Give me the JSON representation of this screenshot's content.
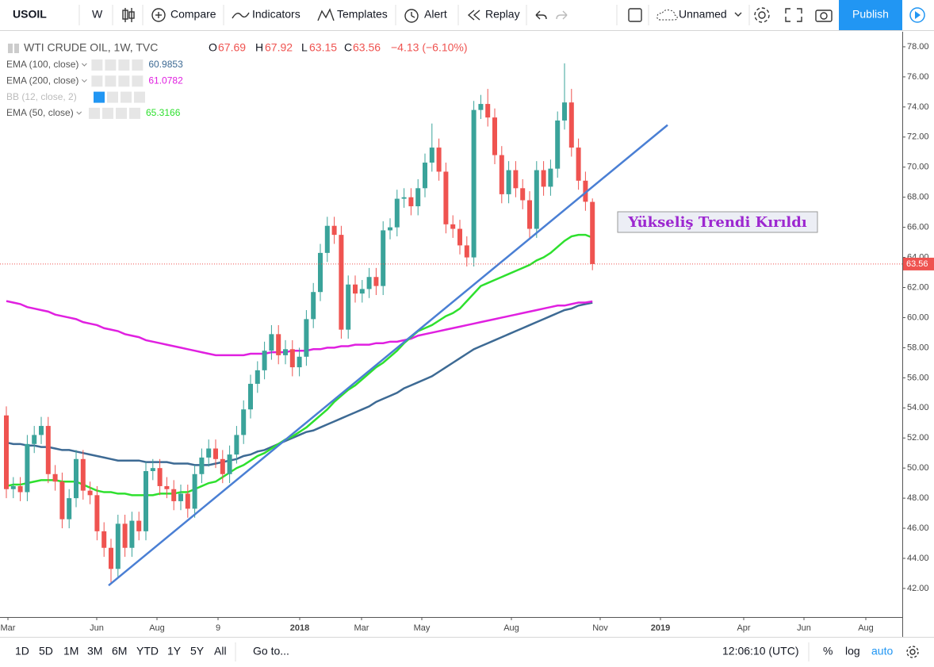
{
  "toolbar": {
    "symbol": "USOIL",
    "interval": "W",
    "compare": "Compare",
    "indicators": "Indicators",
    "templates": "Templates",
    "alert": "Alert",
    "replay": "Replay",
    "layout_name": "Unnamed",
    "publish": "Publish"
  },
  "bottom_bar": {
    "ranges": [
      "1D",
      "5D",
      "1M",
      "3M",
      "6M",
      "YTD",
      "1Y",
      "5Y",
      "All"
    ],
    "goto": "Go to...",
    "clock": "12:06:10 (UTC)",
    "percent": "%",
    "log": "log",
    "auto": "auto"
  },
  "chart_data": {
    "type": "candlestick",
    "title": "WTI CRUDE OIL, 1W, TVC",
    "legend": {
      "o": "O",
      "h": "H",
      "l": "L",
      "c": "C",
      "change": "−4.13 (−6.10%)"
    },
    "up_color": "#3aa39a",
    "down_color": "#ef5350",
    "grid": false,
    "open": [
      53.5,
      48.6,
      48.8,
      48.4,
      51.6,
      52.2,
      52.8,
      49.6,
      49.1,
      46.6,
      48.0,
      50.6,
      48.5,
      48.2,
      45.8,
      44.7,
      43.3,
      46.3,
      44.7,
      46.5,
      45.8,
      49.8,
      50.0,
      48.8,
      48.6,
      47.8,
      48.3,
      47.3,
      49.6,
      50.7,
      51.3,
      50.6,
      49.6,
      50.9,
      52.2,
      53.9,
      55.6,
      56.5,
      57.8,
      58.9,
      57.5,
      57.9,
      56.7,
      57.4,
      59.9,
      61.7,
      64.3,
      66.1,
      65.5,
      59.2,
      62.2,
      61.6,
      61.9,
      62.7,
      62.1,
      65.8,
      66.0,
      67.9,
      68.0,
      67.4,
      68.6,
      70.3,
      71.3,
      69.7,
      66.2,
      65.9,
      64.8,
      64.0,
      73.8,
      74.2,
      73.3,
      70.8,
      68.2,
      69.8,
      68.6,
      67.8,
      65.9,
      69.8,
      68.7,
      69.9,
      73.1,
      74.3,
      71.3,
      69.1,
      67.69
    ],
    "high": [
      54.1,
      49.4,
      49.4,
      52.2,
      52.8,
      53.4,
      53.4,
      50.2,
      49.7,
      48.6,
      51.2,
      51.2,
      49.1,
      48.8,
      46.4,
      45.3,
      46.9,
      46.9,
      47.1,
      47.1,
      50.4,
      50.6,
      50.6,
      49.4,
      49.2,
      48.9,
      48.9,
      50.2,
      51.3,
      51.9,
      51.9,
      51.2,
      51.5,
      52.8,
      54.5,
      56.2,
      57.1,
      58.4,
      59.5,
      59.5,
      58.5,
      58.5,
      58.0,
      60.5,
      62.3,
      64.9,
      66.7,
      66.7,
      66.1,
      62.8,
      62.8,
      62.5,
      63.3,
      63.3,
      66.4,
      66.6,
      68.5,
      68.6,
      68.6,
      69.2,
      70.9,
      72.9,
      71.9,
      70.3,
      66.8,
      66.5,
      65.4,
      74.4,
      74.8,
      75.2,
      73.9,
      71.4,
      70.4,
      70.4,
      69.2,
      68.4,
      70.4,
      70.4,
      70.5,
      73.7,
      76.9,
      75.2,
      71.9,
      69.7,
      67.92
    ],
    "low": [
      48.0,
      48.0,
      47.8,
      47.8,
      51.0,
      51.6,
      49.0,
      48.5,
      46.0,
      46.0,
      47.4,
      47.9,
      47.6,
      45.2,
      44.1,
      42.3,
      42.7,
      44.1,
      44.1,
      45.2,
      45.2,
      49.2,
      48.2,
      48.0,
      47.2,
      47.2,
      46.7,
      46.7,
      49.0,
      50.1,
      50.0,
      49.0,
      49.0,
      50.3,
      51.6,
      53.3,
      55.0,
      55.9,
      57.2,
      56.9,
      56.9,
      56.1,
      56.1,
      56.8,
      59.3,
      61.1,
      63.7,
      64.9,
      58.6,
      58.6,
      61.0,
      61.0,
      61.3,
      61.5,
      61.5,
      65.2,
      65.4,
      67.3,
      66.8,
      66.8,
      68.0,
      69.7,
      69.1,
      65.6,
      65.3,
      64.2,
      63.4,
      63.4,
      73.2,
      72.7,
      70.2,
      67.6,
      67.6,
      68.0,
      67.2,
      65.3,
      65.3,
      68.1,
      68.1,
      69.3,
      72.5,
      70.7,
      68.5,
      67.1,
      63.15
    ],
    "close": [
      48.6,
      48.8,
      48.4,
      51.6,
      52.2,
      52.8,
      49.6,
      49.1,
      46.6,
      48.0,
      50.6,
      48.5,
      48.2,
      45.8,
      44.7,
      43.3,
      46.3,
      44.7,
      46.5,
      45.8,
      49.8,
      50.0,
      48.8,
      48.6,
      47.8,
      48.3,
      47.3,
      49.6,
      50.7,
      51.3,
      50.6,
      49.6,
      50.9,
      52.2,
      53.9,
      55.6,
      56.5,
      57.8,
      58.9,
      57.5,
      57.9,
      56.7,
      57.4,
      59.9,
      61.7,
      64.3,
      66.1,
      65.5,
      59.2,
      62.2,
      61.6,
      61.9,
      62.7,
      62.1,
      65.8,
      66.0,
      67.9,
      68.0,
      67.4,
      68.6,
      70.3,
      71.3,
      69.7,
      66.2,
      65.9,
      64.8,
      64.0,
      73.8,
      74.2,
      73.3,
      70.8,
      68.2,
      69.8,
      68.6,
      67.8,
      65.9,
      69.8,
      68.7,
      69.9,
      73.1,
      74.3,
      71.3,
      69.1,
      67.7,
      63.56
    ],
    "series": [
      {
        "name": "EMA (100, close)",
        "legend_value": "60.9853",
        "color": "#3d6a94",
        "values": [
          51.7,
          51.6,
          51.6,
          51.5,
          51.5,
          51.4,
          51.4,
          51.3,
          51.2,
          51.2,
          51.1,
          51.0,
          50.9,
          50.8,
          50.7,
          50.6,
          50.5,
          50.5,
          50.5,
          50.5,
          50.4,
          50.4,
          50.4,
          50.4,
          50.3,
          50.3,
          50.3,
          50.2,
          50.2,
          50.2,
          50.3,
          50.4,
          50.5,
          50.6,
          50.8,
          50.9,
          51.1,
          51.2,
          51.4,
          51.6,
          51.8,
          52.0,
          52.2,
          52.4,
          52.5,
          52.7,
          52.9,
          53.1,
          53.3,
          53.5,
          53.7,
          53.9,
          54.1,
          54.4,
          54.6,
          54.8,
          55.0,
          55.3,
          55.5,
          55.7,
          55.9,
          56.1,
          56.4,
          56.7,
          57.0,
          57.3,
          57.6,
          57.9,
          58.1,
          58.3,
          58.5,
          58.7,
          58.9,
          59.1,
          59.3,
          59.5,
          59.7,
          59.9,
          60.1,
          60.3,
          60.5,
          60.6,
          60.8,
          60.9,
          60.99
        ]
      },
      {
        "name": "EMA (200, close)",
        "legend_value": "61.0782",
        "color": "#e020e0",
        "values": [
          61.1,
          61.0,
          60.9,
          60.7,
          60.6,
          60.5,
          60.4,
          60.2,
          60.1,
          60.0,
          59.9,
          59.7,
          59.6,
          59.5,
          59.3,
          59.2,
          59.1,
          58.9,
          58.8,
          58.7,
          58.5,
          58.4,
          58.3,
          58.2,
          58.1,
          58.0,
          57.9,
          57.8,
          57.7,
          57.6,
          57.5,
          57.5,
          57.5,
          57.5,
          57.5,
          57.6,
          57.6,
          57.6,
          57.7,
          57.7,
          57.7,
          57.8,
          57.8,
          57.8,
          57.9,
          57.9,
          58.0,
          58.0,
          58.1,
          58.1,
          58.2,
          58.2,
          58.2,
          58.3,
          58.3,
          58.4,
          58.4,
          58.5,
          58.6,
          58.8,
          58.9,
          59.0,
          59.1,
          59.2,
          59.3,
          59.4,
          59.5,
          59.6,
          59.7,
          59.8,
          59.9,
          60.0,
          60.1,
          60.2,
          60.3,
          60.4,
          60.5,
          60.6,
          60.7,
          60.8,
          60.8,
          60.9,
          61.0,
          61.0,
          61.08
        ]
      },
      {
        "name": "BB (12, close, 2)"
      },
      {
        "name": "EMA (50, close)",
        "legend_value": "65.3166",
        "color": "#2ee02e",
        "values": [
          48.8,
          48.9,
          48.9,
          49.0,
          49.1,
          49.2,
          49.2,
          49.2,
          49.1,
          49.1,
          49.1,
          48.9,
          48.7,
          48.5,
          48.4,
          48.4,
          48.3,
          48.3,
          48.2,
          48.2,
          48.2,
          48.2,
          48.3,
          48.3,
          48.3,
          48.4,
          48.4,
          48.6,
          48.8,
          49.0,
          49.1,
          49.4,
          49.7,
          50.0,
          50.2,
          50.5,
          50.8,
          51.0,
          51.3,
          51.6,
          51.9,
          52.1,
          52.4,
          52.7,
          53.1,
          53.5,
          53.9,
          54.4,
          54.8,
          55.2,
          55.5,
          55.9,
          56.3,
          56.7,
          57.0,
          57.4,
          57.8,
          58.3,
          58.7,
          59.1,
          59.3,
          59.5,
          59.8,
          60.1,
          60.3,
          60.6,
          61.1,
          61.6,
          62.1,
          62.3,
          62.5,
          62.7,
          62.9,
          63.1,
          63.3,
          63.5,
          63.8,
          64.0,
          64.3,
          64.7,
          65.1,
          65.4,
          65.5,
          65.5,
          65.32
        ]
      }
    ],
    "trendline": {
      "start": 42.2,
      "end": 72.8,
      "color": "#4a7fd4"
    },
    "annotation": "Yükseliş Trendi Kırıldı",
    "ylim": [
      40.1,
      79.0
    ],
    "yticks": [
      {
        "value": 42,
        "label": "42.00"
      },
      {
        "value": 44,
        "label": "44.00"
      },
      {
        "value": 46,
        "label": "46.00"
      },
      {
        "value": 48,
        "label": "48.00"
      },
      {
        "value": 50,
        "label": "50.00"
      },
      {
        "value": 52,
        "label": "52.00"
      },
      {
        "value": 54,
        "label": "54.00"
      },
      {
        "value": 56,
        "label": "56.00"
      },
      {
        "value": 58,
        "label": "58.00"
      },
      {
        "value": 60,
        "label": "60.00"
      },
      {
        "value": 62,
        "label": "62.00"
      },
      {
        "value": 64,
        "label": "64.00"
      },
      {
        "value": 66,
        "label": "66.00"
      },
      {
        "value": 68,
        "label": "68.00"
      },
      {
        "value": 70,
        "label": "70.00"
      },
      {
        "value": 72,
        "label": "72.00"
      },
      {
        "value": 74,
        "label": "74.00"
      },
      {
        "value": 76,
        "label": "76.00"
      },
      {
        "value": 78,
        "label": "78.00"
      }
    ],
    "time_labels": [
      "Mar",
      "Jun",
      "Aug",
      "9",
      "2018",
      "Mar",
      "May",
      "Aug",
      "Nov",
      "2019",
      "Apr",
      "Jun",
      "Aug"
    ]
  }
}
